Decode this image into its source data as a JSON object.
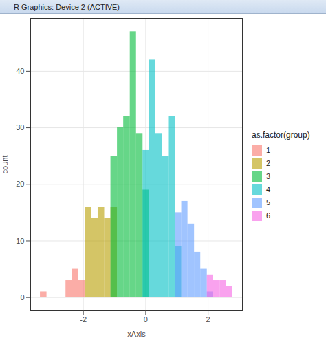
{
  "chart_data": {
    "type": "histogram",
    "window_title": "R Graphics: Device 2 (ACTIVE)",
    "x_label": "xAxis",
    "y_label": "count",
    "legend_title": "as.factor(group)",
    "legend": "right",
    "grid": true,
    "xlim": [
      -3.69,
      3.1
    ],
    "ylim": [
      -2.35,
      49.35
    ],
    "xticks": [
      -2,
      0,
      2
    ],
    "yticks": [
      0,
      10,
      20,
      30,
      40
    ],
    "bins": [
      -3.38,
      -3.17,
      -2.97,
      -2.76,
      -2.56,
      -2.35,
      -2.15,
      -1.94,
      -1.73,
      -1.53,
      -1.32,
      -1.12,
      -0.91,
      -0.71,
      -0.5,
      -0.3,
      -0.09,
      0.12,
      0.32,
      0.53,
      0.73,
      0.94,
      1.15,
      1.35,
      1.56,
      1.76,
      1.97,
      2.17,
      2.38,
      2.58,
      2.79
    ],
    "series": [
      {
        "name": "1",
        "color": "#F8766D",
        "values": [
          1,
          0,
          0,
          0,
          3,
          5,
          3,
          0,
          0,
          0,
          0,
          0,
          0,
          0,
          0,
          0,
          0,
          0,
          0,
          0,
          0,
          0,
          0,
          0,
          0,
          0,
          0,
          0,
          0,
          0
        ]
      },
      {
        "name": "2",
        "color": "#B79F00",
        "values": [
          0,
          0,
          0,
          0,
          0,
          0,
          0,
          16,
          14,
          16,
          14,
          16,
          0,
          0,
          0,
          0,
          0,
          0,
          0,
          0,
          0,
          0,
          0,
          0,
          0,
          0,
          0,
          0,
          0,
          0
        ]
      },
      {
        "name": "3",
        "color": "#00BA38",
        "values": [
          0,
          0,
          0,
          0,
          0,
          0,
          0,
          0,
          0,
          0,
          0,
          25,
          30,
          32,
          47,
          29,
          19,
          0,
          0,
          0,
          0,
          0,
          0,
          0,
          0,
          0,
          0,
          0,
          0,
          0
        ]
      },
      {
        "name": "4",
        "color": "#00BFC4",
        "values": [
          0,
          0,
          0,
          0,
          0,
          0,
          0,
          0,
          0,
          0,
          0,
          0,
          0,
          0,
          0,
          0,
          26,
          42,
          29,
          25,
          32,
          9,
          0,
          0,
          0,
          0,
          0,
          0,
          0,
          0
        ]
      },
      {
        "name": "5",
        "color": "#619CFF",
        "values": [
          0,
          0,
          0,
          0,
          0,
          0,
          0,
          0,
          0,
          0,
          0,
          0,
          0,
          0,
          0,
          0,
          0,
          0,
          0,
          0,
          0,
          15,
          17,
          13,
          8,
          5,
          1,
          0,
          0,
          0
        ]
      },
      {
        "name": "6",
        "color": "#F564E3",
        "values": [
          0,
          0,
          0,
          0,
          0,
          0,
          0,
          0,
          0,
          0,
          0,
          0,
          0,
          0,
          0,
          0,
          0,
          0,
          0,
          0,
          0,
          0,
          0,
          0,
          0,
          0,
          4,
          3,
          3,
          2
        ]
      }
    ]
  }
}
